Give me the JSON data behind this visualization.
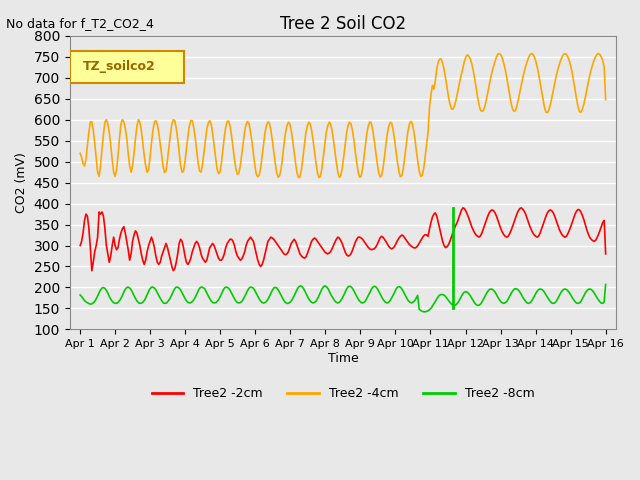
{
  "title": "Tree 2 Soil CO2",
  "no_data_text": "No data for f_T2_CO2_4",
  "ylabel": "CO2 (mV)",
  "xlabel": "Time",
  "ylim": [
    100,
    800
  ],
  "bg_color": "#e8e8e8",
  "plot_bg_color": "#e8e8e8",
  "grid_color": "#ffffff",
  "legend_label": "TZ_soilco2",
  "colors": {
    "red": "#ff0000",
    "orange": "#ffa500",
    "green": "#00cc00"
  },
  "series_labels": [
    "Tree2 -2cm",
    "Tree2 -4cm",
    "Tree2 -8cm"
  ],
  "x_tick_labels": [
    "Apr 1",
    "Apr 2",
    "Apr 3",
    "Apr 4",
    "Apr 5",
    "Apr 6",
    "Apr 7",
    "Apr 8",
    "Apr 9",
    "Apr 10",
    "Apr 11",
    "Apr 12",
    "Apr 13",
    "Apr 14",
    "Apr 15",
    "Apr 16"
  ],
  "red_data": [
    300,
    310,
    330,
    360,
    375,
    370,
    340,
    295,
    240,
    260,
    285,
    300,
    320,
    380,
    375,
    380,
    370,
    340,
    300,
    280,
    260,
    275,
    300,
    320,
    300,
    290,
    295,
    315,
    330,
    340,
    345,
    330,
    310,
    290,
    265,
    280,
    310,
    325,
    335,
    330,
    315,
    300,
    280,
    265,
    255,
    265,
    285,
    300,
    310,
    320,
    310,
    295,
    275,
    260,
    255,
    260,
    275,
    285,
    295,
    305,
    295,
    280,
    265,
    250,
    240,
    245,
    260,
    280,
    305,
    315,
    310,
    295,
    275,
    260,
    255,
    260,
    270,
    285,
    295,
    305,
    310,
    305,
    295,
    280,
    270,
    265,
    260,
    265,
    280,
    295,
    300,
    305,
    300,
    290,
    280,
    270,
    265,
    265,
    270,
    280,
    295,
    305,
    310,
    315,
    315,
    310,
    300,
    285,
    275,
    270,
    265,
    268,
    275,
    285,
    300,
    310,
    315,
    320,
    315,
    310,
    295,
    280,
    265,
    255,
    250,
    255,
    265,
    280,
    295,
    310,
    315,
    320,
    318,
    315,
    310,
    305,
    300,
    295,
    290,
    285,
    280,
    278,
    280,
    285,
    295,
    305,
    310,
    315,
    310,
    300,
    290,
    280,
    275,
    272,
    270,
    272,
    280,
    290,
    300,
    310,
    315,
    318,
    315,
    310,
    305,
    300,
    295,
    290,
    285,
    282,
    280,
    282,
    285,
    292,
    300,
    308,
    315,
    320,
    318,
    312,
    305,
    295,
    285,
    278,
    275,
    276,
    280,
    288,
    298,
    308,
    315,
    320,
    320,
    318,
    315,
    310,
    305,
    300,
    295,
    292,
    290,
    291,
    292,
    296,
    302,
    310,
    318,
    322,
    320,
    315,
    310,
    304,
    298,
    294,
    292,
    294,
    298,
    305,
    312,
    318,
    322,
    325,
    323,
    318,
    313,
    308,
    303,
    300,
    297,
    295,
    294,
    296,
    300,
    306,
    312,
    318,
    323,
    326,
    325,
    322,
    340,
    355,
    368,
    375,
    378,
    370,
    355,
    340,
    325,
    310,
    300,
    295,
    297,
    302,
    310,
    320,
    330,
    340,
    348,
    355,
    365,
    375,
    385,
    390,
    388,
    382,
    374,
    365,
    355,
    345,
    337,
    330,
    325,
    322,
    320,
    323,
    330,
    340,
    350,
    360,
    370,
    378,
    383,
    385,
    383,
    378,
    370,
    360,
    350,
    340,
    332,
    326,
    322,
    320,
    322,
    328,
    336,
    345,
    355,
    365,
    375,
    383,
    388,
    390,
    387,
    382,
    375,
    365,
    355,
    345,
    337,
    330,
    325,
    322,
    320,
    323,
    330,
    340,
    350,
    360,
    370,
    378,
    383,
    385,
    383,
    378,
    370,
    360,
    350,
    340,
    332,
    326,
    322,
    320,
    322,
    328,
    336,
    345,
    355,
    365,
    375,
    382,
    386,
    385,
    380,
    372,
    362,
    350,
    338,
    328,
    320,
    315,
    312,
    310,
    312,
    318,
    326,
    335,
    345,
    355,
    360,
    280
  ],
  "orange_data": [
    520,
    510,
    495,
    490,
    505,
    540,
    570,
    595,
    595,
    575,
    545,
    510,
    475,
    465,
    490,
    530,
    565,
    595,
    600,
    590,
    570,
    540,
    505,
    475,
    465,
    480,
    515,
    555,
    590,
    600,
    595,
    580,
    555,
    520,
    490,
    475,
    490,
    520,
    555,
    585,
    600,
    595,
    575,
    545,
    515,
    490,
    475,
    480,
    510,
    545,
    575,
    595,
    598,
    590,
    570,
    542,
    512,
    488,
    474,
    478,
    505,
    535,
    565,
    590,
    600,
    598,
    580,
    555,
    522,
    491,
    475,
    477,
    500,
    530,
    560,
    585,
    598,
    598,
    582,
    558,
    527,
    498,
    478,
    475,
    492,
    520,
    550,
    578,
    592,
    598,
    590,
    568,
    540,
    510,
    484,
    472,
    474,
    496,
    526,
    558,
    582,
    596,
    597,
    585,
    562,
    534,
    506,
    482,
    470,
    472,
    490,
    517,
    546,
    572,
    589,
    596,
    591,
    572,
    548,
    519,
    491,
    470,
    464,
    468,
    485,
    513,
    543,
    570,
    587,
    595,
    592,
    575,
    551,
    523,
    497,
    474,
    463,
    466,
    482,
    509,
    540,
    568,
    585,
    594,
    591,
    574,
    550,
    522,
    496,
    473,
    462,
    464,
    481,
    508,
    539,
    568,
    585,
    594,
    591,
    575,
    551,
    523,
    497,
    474,
    462,
    465,
    482,
    510,
    540,
    568,
    585,
    594,
    591,
    575,
    552,
    524,
    498,
    475,
    463,
    466,
    483,
    510,
    540,
    568,
    586,
    594,
    591,
    575,
    553,
    524,
    498,
    475,
    463,
    465,
    483,
    511,
    541,
    569,
    586,
    595,
    592,
    576,
    552,
    524,
    498,
    475,
    464,
    466,
    483,
    510,
    540,
    567,
    585,
    594,
    592,
    576,
    552,
    524,
    498,
    476,
    464,
    467,
    484,
    511,
    541,
    569,
    587,
    596,
    593,
    577,
    554,
    525,
    499,
    476,
    465,
    467,
    484,
    511,
    542,
    570,
    630,
    660,
    682,
    673,
    693,
    722,
    738,
    745,
    745,
    735,
    720,
    700,
    678,
    656,
    638,
    626,
    625,
    632,
    644,
    660,
    678,
    695,
    710,
    725,
    740,
    750,
    755,
    752,
    745,
    734,
    718,
    698,
    676,
    655,
    636,
    623,
    620,
    622,
    632,
    647,
    665,
    683,
    700,
    715,
    728,
    740,
    750,
    757,
    758,
    755,
    747,
    735,
    720,
    702,
    681,
    660,
    640,
    626,
    620,
    622,
    633,
    648,
    665,
    682,
    699,
    714,
    727,
    738,
    748,
    755,
    758,
    757,
    750,
    740,
    726,
    708,
    688,
    667,
    647,
    629,
    618,
    617,
    624,
    636,
    652,
    670,
    687,
    704,
    718,
    730,
    741,
    749,
    756,
    758,
    756,
    750,
    741,
    728,
    712,
    692,
    671,
    650,
    631,
    619,
    618,
    625,
    637,
    653,
    671,
    688,
    705,
    719,
    731,
    742,
    750,
    756,
    758,
    756,
    750,
    741,
    725,
    648
  ],
  "green_data": [
    182,
    178,
    173,
    168,
    165,
    163,
    161,
    160,
    162,
    165,
    170,
    177,
    185,
    193,
    198,
    200,
    198,
    193,
    186,
    178,
    171,
    166,
    163,
    162,
    163,
    166,
    171,
    178,
    186,
    194,
    199,
    201,
    199,
    195,
    188,
    180,
    173,
    167,
    163,
    162,
    163,
    166,
    171,
    179,
    187,
    195,
    200,
    201,
    199,
    195,
    188,
    181,
    174,
    168,
    163,
    162,
    163,
    167,
    172,
    179,
    187,
    195,
    200,
    201,
    199,
    195,
    188,
    181,
    174,
    168,
    164,
    163,
    164,
    167,
    172,
    179,
    187,
    195,
    200,
    201,
    199,
    196,
    188,
    181,
    174,
    168,
    164,
    163,
    164,
    167,
    172,
    179,
    187,
    195,
    200,
    201,
    199,
    195,
    188,
    181,
    174,
    168,
    164,
    163,
    164,
    167,
    173,
    180,
    188,
    195,
    200,
    201,
    199,
    195,
    188,
    181,
    174,
    168,
    164,
    163,
    164,
    167,
    173,
    180,
    188,
    195,
    200,
    200,
    197,
    191,
    184,
    177,
    170,
    165,
    162,
    162,
    164,
    168,
    174,
    181,
    189,
    197,
    202,
    204,
    202,
    197,
    190,
    182,
    175,
    169,
    165,
    163,
    164,
    167,
    173,
    181,
    189,
    197,
    202,
    204,
    201,
    196,
    188,
    181,
    175,
    169,
    165,
    163,
    164,
    168,
    174,
    181,
    189,
    197,
    202,
    203,
    201,
    196,
    189,
    182,
    175,
    169,
    165,
    163,
    164,
    167,
    174,
    181,
    188,
    196,
    201,
    203,
    201,
    196,
    189,
    182,
    175,
    169,
    165,
    163,
    164,
    168,
    174,
    181,
    188,
    196,
    201,
    202,
    200,
    195,
    188,
    181,
    174,
    168,
    165,
    163,
    165,
    168,
    174,
    181,
    148,
    145,
    143,
    142,
    142,
    143,
    145,
    148,
    152,
    158,
    164,
    170,
    176,
    181,
    183,
    183,
    182,
    179,
    174,
    169,
    164,
    160,
    158,
    157,
    159,
    163,
    169,
    176,
    183,
    188,
    190,
    189,
    186,
    181,
    175,
    169,
    163,
    159,
    157,
    158,
    161,
    167,
    174,
    181,
    188,
    193,
    196,
    196,
    194,
    190,
    184,
    177,
    171,
    166,
    163,
    162,
    164,
    167,
    174,
    181,
    188,
    193,
    197,
    197,
    195,
    191,
    185,
    178,
    172,
    167,
    163,
    162,
    164,
    168,
    174,
    181,
    188,
    193,
    196,
    196,
    194,
    190,
    184,
    178,
    172,
    167,
    163,
    162,
    163,
    167,
    174,
    181,
    188,
    193,
    196,
    196,
    194,
    190,
    184,
    178,
    172,
    167,
    163,
    162,
    163,
    167,
    174,
    181,
    188,
    193,
    196,
    196,
    194,
    190,
    184,
    178,
    172,
    167,
    163,
    162,
    165,
    207
  ]
}
